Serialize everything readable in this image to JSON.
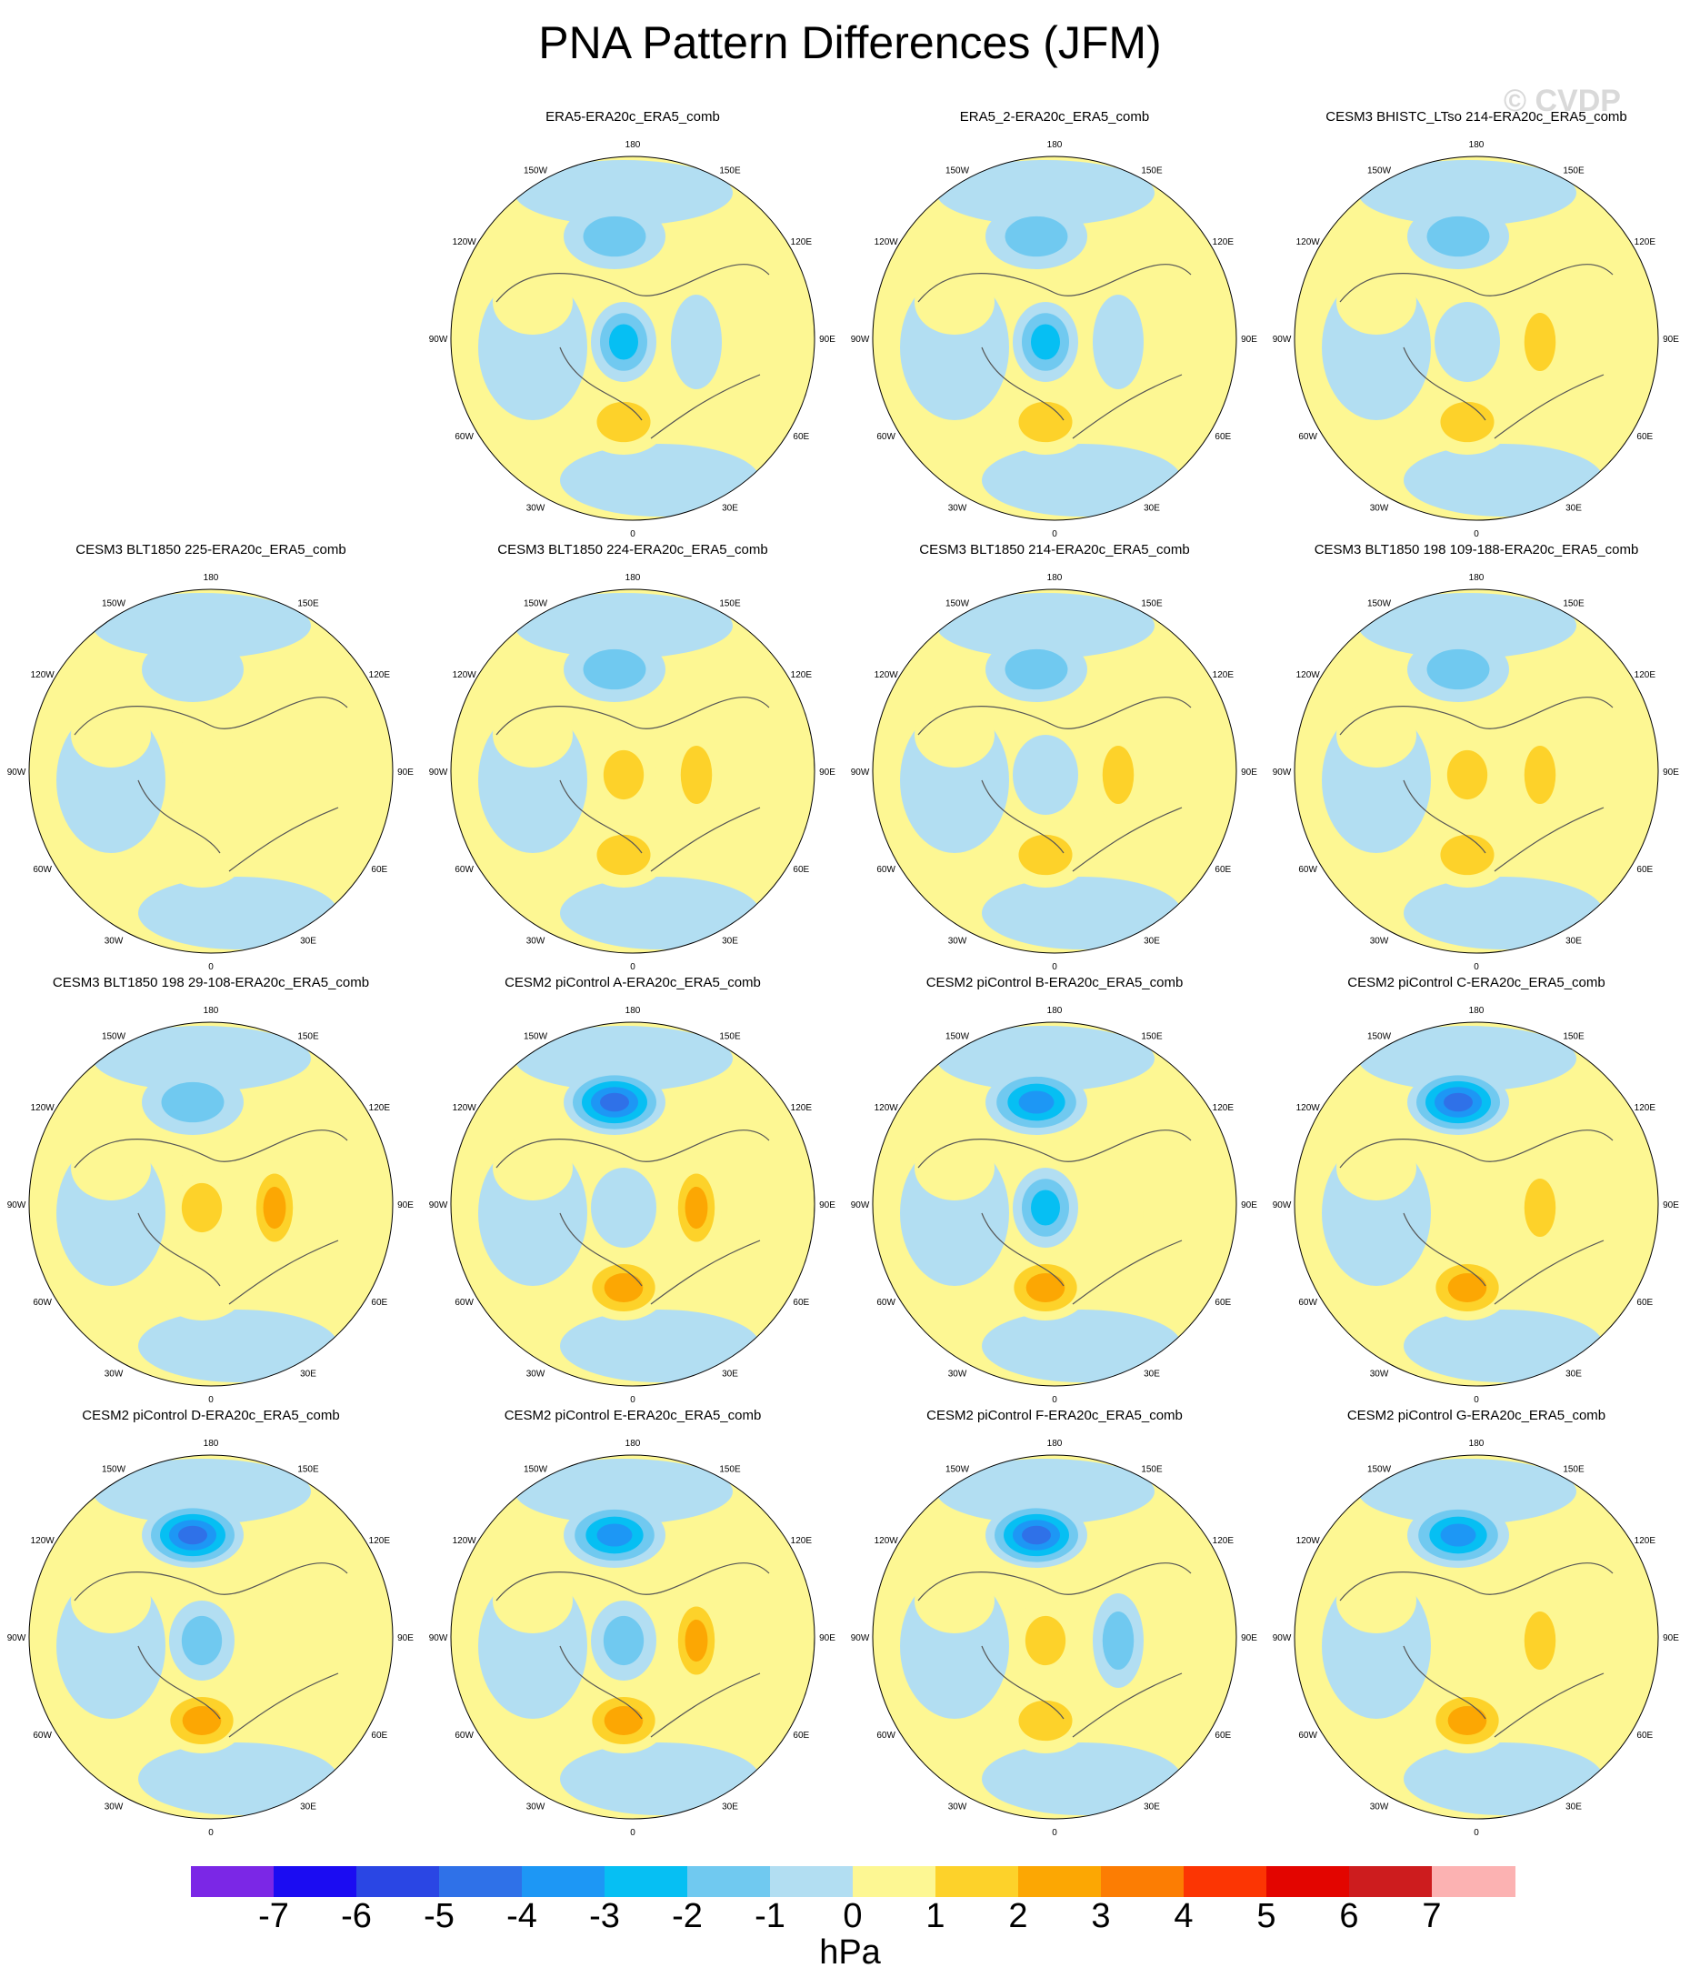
{
  "title": "PNA Pattern Differences (JFM)",
  "watermark": "© CVDP",
  "lon_labels": [
    "180",
    "150E",
    "120E",
    "90E",
    "60E",
    "30E",
    "0",
    "30W",
    "60W",
    "90W",
    "120W",
    "150W"
  ],
  "panels": [
    {
      "title": "ERA5-ERA20c_ERA5_comb",
      "pattern": {
        "aleut": -1.5,
        "arctic": -2.5,
        "atl": 2,
        "eura": -1,
        "wna": 1
      }
    },
    {
      "title": "ERA5_2-ERA20c_ERA5_comb",
      "pattern": {
        "aleut": -2,
        "arctic": -3,
        "atl": 2,
        "eura": -1,
        "wna": 1
      }
    },
    {
      "title": "CESM3 BHISTC_LTso 214-ERA20c_ERA5_comb",
      "pattern": {
        "aleut": -2,
        "arctic": -1,
        "atl": 1.5,
        "eura": 2,
        "wna": 0.5
      }
    },
    {
      "title": "CESM3 BLT1850 225-ERA20c_ERA5_comb",
      "pattern": {
        "aleut": -1,
        "arctic": 0.5,
        "atl": 0.5,
        "eura": 0.5,
        "wna": 0.5
      }
    },
    {
      "title": "CESM3 BLT1850 224-ERA20c_ERA5_comb",
      "pattern": {
        "aleut": -1.5,
        "arctic": 1.5,
        "atl": 1.5,
        "eura": 1.5,
        "wna": 0.5
      }
    },
    {
      "title": "CESM3 BLT1850 214-ERA20c_ERA5_comb",
      "pattern": {
        "aleut": -1.5,
        "arctic": -1,
        "atl": 1.2,
        "eura": 1.5,
        "wna": 0.5
      }
    },
    {
      "title": "CESM3 BLT1850 198 109-188-ERA20c_ERA5_comb",
      "pattern": {
        "aleut": -1.2,
        "arctic": 1.5,
        "atl": 1.5,
        "eura": 2,
        "wna": 0.5
      }
    },
    {
      "title": "CESM3 BLT1850 198 29-108-ERA20c_ERA5_comb",
      "pattern": {
        "aleut": -2,
        "arctic": 1.5,
        "atl": 1,
        "eura": 2.5,
        "wna": 1
      }
    },
    {
      "title": "CESM2 piControl A-ERA20c_ERA5_comb",
      "pattern": {
        "aleut": -5,
        "arctic": -0.5,
        "atl": 3,
        "eura": 2.5,
        "wna": 0.5
      }
    },
    {
      "title": "CESM2 piControl B-ERA20c_ERA5_comb",
      "pattern": {
        "aleut": -3.5,
        "arctic": -2.5,
        "atl": 3,
        "eura": 0.5,
        "wna": 0.5
      }
    },
    {
      "title": "CESM2 piControl C-ERA20c_ERA5_comb",
      "pattern": {
        "aleut": -4.5,
        "arctic": 1,
        "atl": 2.5,
        "eura": 2,
        "wna": 0.5
      }
    },
    {
      "title": "CESM2 piControl D-ERA20c_ERA5_comb",
      "pattern": {
        "aleut": -4.5,
        "arctic": -1.5,
        "atl": 2.5,
        "eura": 1,
        "wna": 0.5
      }
    },
    {
      "title": "CESM2 piControl E-ERA20c_ERA5_comb",
      "pattern": {
        "aleut": -3.5,
        "arctic": -1.5,
        "atl": 2.5,
        "eura": 2.5,
        "wna": 0.5
      }
    },
    {
      "title": "CESM2 piControl F-ERA20c_ERA5_comb",
      "pattern": {
        "aleut": -4.5,
        "arctic": 1.5,
        "atl": 2,
        "eura": -2,
        "wna": 0.5
      }
    },
    {
      "title": "CESM2 piControl G-ERA20c_ERA5_comb",
      "pattern": {
        "aleut": -4,
        "arctic": 1,
        "atl": 2.5,
        "eura": 2,
        "wna": 0.5
      }
    }
  ],
  "colorbar": {
    "units": "hPa",
    "ticks": [
      "-7",
      "-6",
      "-5",
      "-4",
      "-3",
      "-2",
      "-1",
      "0",
      "1",
      "2",
      "3",
      "4",
      "5",
      "6",
      "7"
    ],
    "colors": [
      "#7b27e6",
      "#1b0cf2",
      "#2a46e4",
      "#2f71e8",
      "#1d97f5",
      "#06bff3",
      "#70c9f0",
      "#b2def2",
      "#fdf793",
      "#fdd22a",
      "#fca703",
      "#fc7d03",
      "#fc3503",
      "#e30500",
      "#cd1c1e",
      "#fcb2b2"
    ]
  }
}
